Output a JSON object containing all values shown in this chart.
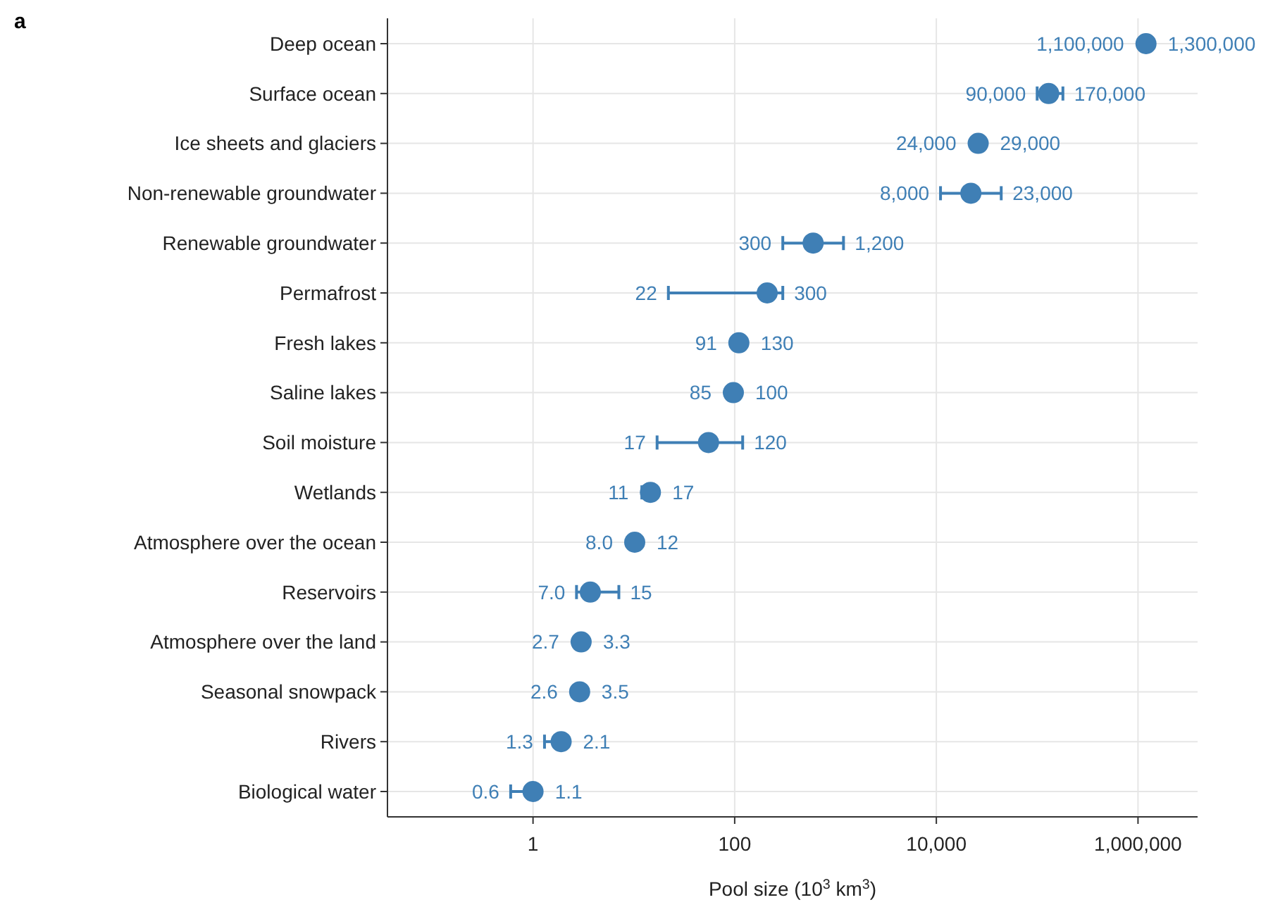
{
  "chart_data": {
    "type": "scatter",
    "orientation": "horizontal",
    "title": "a",
    "xlabel": "Pool size (10$^{3}$ km$^{3}$)",
    "categories": [
      "Deep ocean",
      "Surface ocean",
      "Ice sheets and glaciers",
      "Non-renewable groundwater",
      "Renewable groundwater",
      "Permafrost",
      "Fresh lakes",
      "Saline lakes",
      "Soil moisture",
      "Wetlands",
      "Atmosphere over the ocean",
      "Reservoirs",
      "Atmosphere over the land",
      "Seasonal snowpack",
      "Rivers",
      "Biological water"
    ],
    "series": [
      {
        "color": "#3f7fb5",
        "values": [
          1200000,
          130000,
          26000,
          22000,
          600,
          210,
          110,
          97,
          55,
          14.6,
          10.2,
          3.7,
          3.0,
          2.9,
          1.9,
          1.0
        ],
        "errors": [
          null,
          [
            100000,
            180000
          ],
          null,
          [
            11000,
            44000
          ],
          [
            300,
            1200
          ],
          [
            22,
            300
          ],
          null,
          null,
          [
            17,
            120
          ],
          [
            12,
            15
          ],
          null,
          [
            2.7,
            7.1
          ],
          null,
          null,
          [
            1.3,
            1.9
          ],
          [
            0.6,
            1.0
          ]
        ]
      }
    ],
    "annotations": [
      "1,100,000",
      "1,300,000",
      "90,000",
      "170,000",
      "24,000",
      "29,000",
      "8,000",
      "23,000",
      "300",
      "1,200",
      "22",
      "300",
      "91",
      "130",
      "85",
      "100",
      "17",
      "120",
      "11",
      "17",
      "8.0",
      "12",
      "7.0",
      "15",
      "2.7",
      "3.3",
      "2.6",
      "3.5",
      "1.3",
      "2.1",
      "0.6",
      "1.1"
    ],
    "log": "x",
    "xlim": [
      0.036,
      3900000
    ],
    "xticks": [
      1,
      100,
      {
        "value": 10000,
        "label": "10,000"
      },
      {
        "value": 1000000,
        "label": "1,000,000"
      }
    ],
    "grid": true,
    "marker": "circle"
  }
}
